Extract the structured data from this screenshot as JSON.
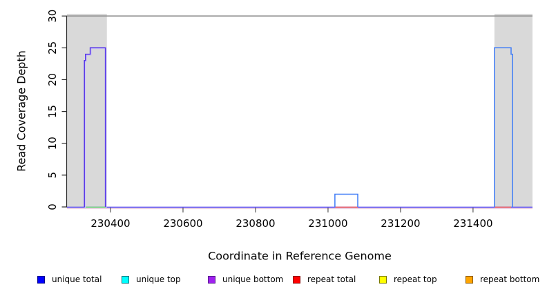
{
  "figure": {
    "xlabel": "Coordinate in Reference Genome",
    "ylabel": "Read Coverage Depth"
  },
  "legend": [
    {
      "label": "unique total",
      "fill": "#0000FF",
      "border": "#00008B"
    },
    {
      "label": "unique top",
      "fill": "#00FFFF",
      "border": "#00707A"
    },
    {
      "label": "unique bottom",
      "fill": "#A020F0",
      "border": "#551A8B"
    },
    {
      "label": "repeat total",
      "fill": "#FF0000",
      "border": "#8B0000"
    },
    {
      "label": "repeat top",
      "fill": "#FFFF00",
      "border": "#7A7A00"
    },
    {
      "label": "repeat bottom",
      "fill": "#FFA500",
      "border": "#8B5A00"
    }
  ],
  "chart_data": {
    "type": "line",
    "title": "",
    "xlabel": "Coordinate in Reference Genome",
    "ylabel": "Read Coverage Depth",
    "xlim": [
      230280,
      231564
    ],
    "ylim": [
      0,
      30
    ],
    "x_ticks": [
      230400,
      230600,
      230800,
      231000,
      231200,
      231400
    ],
    "y_ticks": [
      0,
      5,
      10,
      15,
      20,
      25,
      30
    ],
    "grid": false,
    "legend_position": "bottom",
    "shaded_regions": [
      {
        "name": "left-shaded-region",
        "x0": 230280,
        "x1": 230390,
        "color": "#D9D9D9"
      },
      {
        "name": "right-shaded-region",
        "x0": 231459,
        "x1": 231564,
        "color": "#D9D9D9"
      }
    ],
    "reference_line": {
      "y": 30,
      "color": "#8F8F8F"
    },
    "traces": [
      {
        "name": "left-coverage-peak",
        "stroke": "#5534E8",
        "halo": "#C9C1F6",
        "points": [
          [
            230328,
            0
          ],
          [
            230328,
            23
          ],
          [
            230331,
            23
          ],
          [
            230331,
            24
          ],
          [
            230344,
            24
          ],
          [
            230344,
            25
          ],
          [
            230386,
            25
          ],
          [
            230386,
            0
          ]
        ]
      },
      {
        "name": "mid-coverage-bump",
        "stroke": "#3D7BF7",
        "halo": null,
        "points": [
          [
            231019,
            0
          ],
          [
            231019,
            2
          ],
          [
            231082,
            2
          ],
          [
            231082,
            0
          ]
        ]
      },
      {
        "name": "right-coverage-peak",
        "stroke": "#3D7BF7",
        "halo": null,
        "points": [
          [
            231459,
            0
          ],
          [
            231459,
            25
          ],
          [
            231505,
            25
          ],
          [
            231505,
            24
          ],
          [
            231509,
            24
          ],
          [
            231509,
            0
          ]
        ]
      }
    ],
    "baseline_marks": [
      {
        "name": "baseline-halo",
        "color": "#CFC7F7",
        "x0": 230280,
        "x1": 231564,
        "y": 0,
        "dy": 1.7,
        "w": 1.2
      },
      {
        "name": "baseline-pink",
        "color": "#F3CDD3",
        "x0": 230280,
        "x1": 231564,
        "y": 0,
        "dy": 2.7,
        "w": 0.8
      },
      {
        "name": "baseline",
        "color": "#6152ED",
        "x0": 230280,
        "x1": 231564,
        "y": 0,
        "dy": 0.3,
        "w": 1.3
      },
      {
        "name": "green-zero-segment",
        "color": "#6FD66F",
        "x0": 230330,
        "x1": 230388,
        "y": 0,
        "dy": 0.3,
        "w": 1.4
      },
      {
        "name": "red-zero-segment-mid",
        "color": "#EE5555",
        "x0": 231020,
        "x1": 231082,
        "y": 0,
        "dy": 0.3,
        "w": 1.4
      },
      {
        "name": "red-zero-segment-right",
        "color": "#EE5555",
        "x0": 231460,
        "x1": 231505,
        "y": 0,
        "dy": 0.3,
        "w": 1.4
      }
    ]
  }
}
